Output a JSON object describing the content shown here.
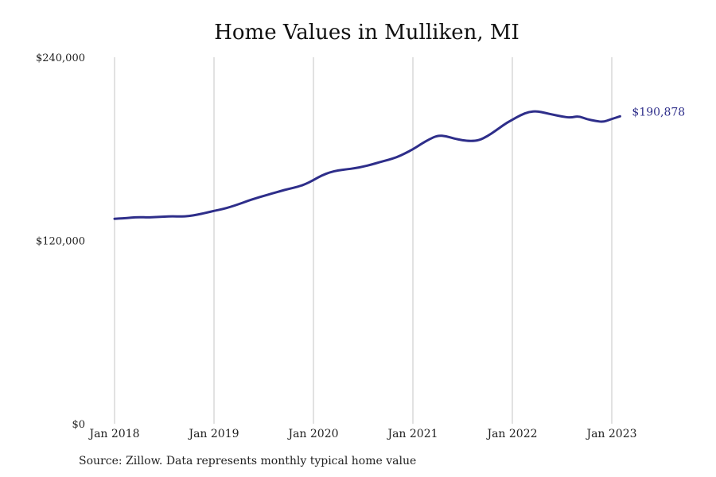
{
  "chart_data": {
    "type": "line",
    "title": "Home Values in Mulliken, MI",
    "source": "Source: Zillow. Data represents monthly typical home value",
    "xlabel": "",
    "ylabel": "",
    "ylim": [
      0,
      240000
    ],
    "yticks": [
      {
        "value": 0,
        "label": "$0"
      },
      {
        "value": 120000,
        "label": "$120,000"
      },
      {
        "value": 240000,
        "label": "$240,000"
      }
    ],
    "xticks": [
      "Jan 2018",
      "Jan 2019",
      "Jan 2020",
      "Jan 2021",
      "Jan 2022",
      "Jan 2023"
    ],
    "grid": "vertical",
    "line_color": "#2e2e8a",
    "end_label": "$190,878",
    "series": [
      {
        "x": [
          "2018-01",
          "2018-02",
          "2018-03",
          "2018-04",
          "2018-05",
          "2018-06",
          "2018-07",
          "2018-08",
          "2018-09",
          "2018-10",
          "2018-11",
          "2018-12",
          "2019-01",
          "2019-02",
          "2019-03",
          "2019-04",
          "2019-05",
          "2019-06",
          "2019-07",
          "2019-08",
          "2019-09",
          "2019-10",
          "2019-11",
          "2019-12",
          "2020-01",
          "2020-02",
          "2020-03",
          "2020-04",
          "2020-05",
          "2020-06",
          "2020-07",
          "2020-08",
          "2020-09",
          "2020-10",
          "2020-11",
          "2020-12",
          "2021-01",
          "2021-02",
          "2021-03",
          "2021-04",
          "2021-05",
          "2021-06",
          "2021-07",
          "2021-08",
          "2021-09",
          "2021-10",
          "2021-11",
          "2021-12",
          "2022-01",
          "2022-02",
          "2022-03",
          "2022-04",
          "2022-05",
          "2022-06",
          "2022-07",
          "2022-08",
          "2022-09",
          "2022-10",
          "2022-11",
          "2022-12",
          "2023-01",
          "2023-02"
        ],
        "values": [
          134200,
          134500,
          135000,
          135300,
          135100,
          135300,
          135600,
          135900,
          135700,
          136000,
          136900,
          138100,
          139400,
          140500,
          142000,
          143800,
          145800,
          147600,
          149200,
          150800,
          152300,
          153800,
          155000,
          156800,
          159500,
          162600,
          164700,
          166000,
          166600,
          167300,
          168400,
          169700,
          171300,
          172700,
          174400,
          176900,
          179700,
          183200,
          186300,
          188800,
          188300,
          186700,
          185600,
          185100,
          185600,
          188300,
          192000,
          195900,
          199100,
          202100,
          204300,
          204700,
          203500,
          202300,
          201200,
          200400,
          201500,
          203200,
          190878,
          190878,
          190878,
          190878
        ]
      }
    ]
  }
}
